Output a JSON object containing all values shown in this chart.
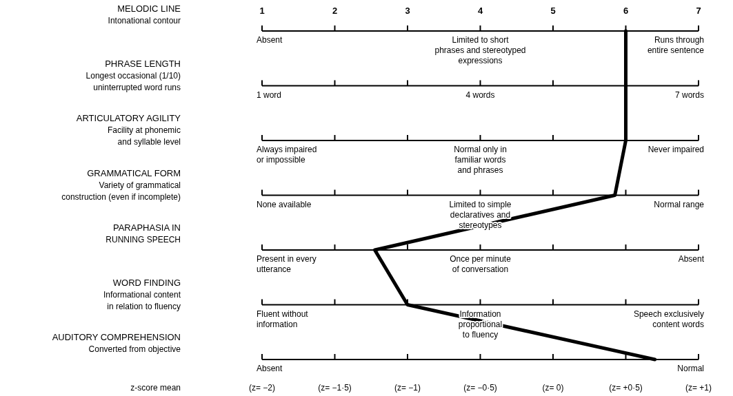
{
  "chart_data": {
    "type": "line",
    "orientation": "horizontal",
    "categories": [
      "MELODIC LINE\nIntonational contour",
      "PHRASE LENGTH\nLongest occasional (1/10)\nuninterrupted word runs",
      "ARTICULATORY AGILITY\nFacility at phonemic\nand syllable level",
      "GRAMMATICAL FORM\nVariety of grammatical\nconstruction (even if incomplete)",
      "PARAPHASIA IN\nRUNNING SPEECH",
      "WORD FINDING\nInformational content\nin relation to fluency",
      "AUDITORY COMPREHENSION\nConverted from objective"
    ],
    "series": [
      {
        "color": "#000000",
        "values": [
          6,
          6,
          6,
          5.85,
          2.55,
          3,
          6.4
        ]
      }
    ],
    "xlim": [
      1,
      7
    ],
    "xticks": [
      1,
      2,
      3,
      4,
      5,
      6,
      7
    ],
    "x2label": "z-score mean",
    "x2lim": [
      -2,
      1
    ],
    "x2ticks": [
      {
        "value": -2,
        "label": "(z= −2)"
      },
      {
        "value": -1.5,
        "label": "(z= −1·5)"
      },
      {
        "value": -1,
        "label": "(z= −1)"
      },
      {
        "value": -0.5,
        "label": "(z= −0·5)"
      },
      {
        "value": 0,
        "label": "(z= 0)"
      },
      {
        "value": 0.5,
        "label": "(z= +0·5)"
      },
      {
        "value": 1,
        "label": "(z= +1)"
      }
    ],
    "annotations": [
      "Absent",
      "Limited to short\nphrases and stereotyped\nexpressions",
      "Runs through\nentire sentence",
      "1 word",
      "4 words",
      "7 words",
      "Always impaired\nor impossible",
      "Normal only in\nfamiliar words\nand phrases",
      "Never impaired",
      "None available",
      "Limited to simple\ndeclaratives and\nstereotypes",
      "Normal range",
      "Present in every\nutterance",
      "Once per minute\nof conversation",
      "Absent",
      "Fluent without\ninformation",
      "Information\nproportional\nto fluency",
      "Speech exclusively\ncontent words",
      "Absent",
      "Normal"
    ]
  }
}
